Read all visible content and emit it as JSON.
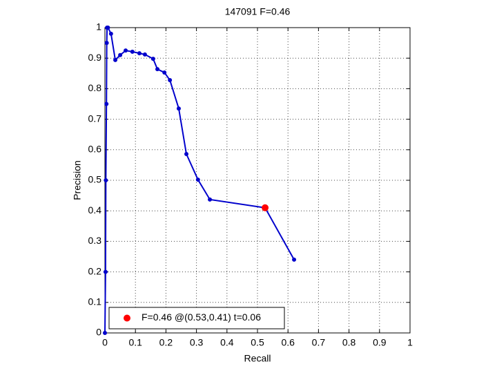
{
  "chart_data": {
    "type": "line",
    "title": "147091 F=0.46",
    "xlabel": "Recall",
    "ylabel": "Precision",
    "xlim": [
      0,
      1
    ],
    "ylim": [
      0,
      1
    ],
    "xticks": [
      0,
      0.1,
      0.2,
      0.3,
      0.4,
      0.5,
      0.6,
      0.7,
      0.8,
      0.9,
      1
    ],
    "yticks": [
      0,
      0.1,
      0.2,
      0.3,
      0.4,
      0.5,
      0.6,
      0.7,
      0.8,
      0.9,
      1
    ],
    "grid": true,
    "legend": "lower left",
    "series": [
      {
        "color": "#0000cc",
        "style": "line",
        "x": [
          0,
          0.002,
          0.003,
          0.005,
          0.006,
          0.007,
          0.01,
          0.02,
          0.034,
          0.05,
          0.068,
          0.09,
          0.113,
          0.131,
          0.158,
          0.172,
          0.195,
          0.213,
          0.242,
          0.267,
          0.305,
          0.344,
          0.525,
          0.62
        ],
        "values": [
          0,
          0.2,
          0.5,
          0.75,
          0.95,
          1,
          1,
          0.98,
          0.894,
          0.91,
          0.925,
          0.921,
          0.916,
          0.912,
          0.898,
          0.864,
          0.853,
          0.828,
          0.735,
          0.586,
          0.502,
          0.437,
          0.41,
          0.24
        ]
      },
      {
        "name": "F=0.46 @(0.53,0.41) t=0.06",
        "color": "#ff0000",
        "style": "marker",
        "x": [
          0.525
        ],
        "values": [
          0.41
        ]
      }
    ]
  }
}
